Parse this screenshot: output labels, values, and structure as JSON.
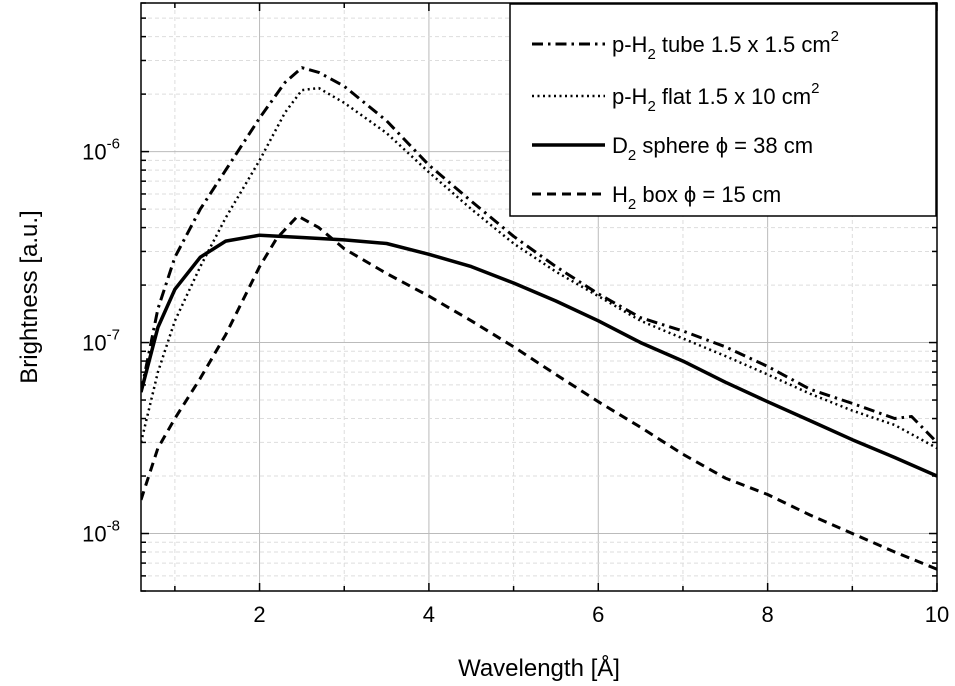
{
  "chart_data": {
    "type": "line",
    "xlabel": "Wavelength [Å]",
    "ylabel": "Brightness [a.u.]",
    "xlim": [
      0.6,
      10
    ],
    "ylim": [
      5e-09,
      6e-06
    ],
    "yscale": "log",
    "grid": true,
    "legend_position": "top-right",
    "x_ticks": [
      2,
      4,
      6,
      8,
      10
    ],
    "x_tick_labels": [
      "2",
      "4",
      "6",
      "8",
      "10"
    ],
    "y_ticks": [
      1e-08,
      1e-07,
      1e-06
    ],
    "y_tick_labels": [
      {
        "base": "10",
        "exp": "-8"
      },
      {
        "base": "10",
        "exp": "-7"
      },
      {
        "base": "10",
        "exp": "-6"
      }
    ],
    "series": [
      {
        "legend": {
          "pre": "p-H",
          "sub": "2",
          "post": " tube 1.5 x 1.5 cm",
          "sup": "2"
        },
        "style": "dashdot",
        "x": [
          0.6,
          0.8,
          1.0,
          1.3,
          1.6,
          2.0,
          2.3,
          2.5,
          2.7,
          3.0,
          3.5,
          4.0,
          4.5,
          5.0,
          5.5,
          6.0,
          6.5,
          7.0,
          7.5,
          8.0,
          8.5,
          9.0,
          9.5,
          9.7,
          10.0
        ],
        "y": [
          5.5e-08,
          1.5e-07,
          2.8e-07,
          5e-07,
          8e-07,
          1.5e-06,
          2.3e-06,
          2.75e-06,
          2.6e-06,
          2.2e-06,
          1.45e-06,
          8.5e-07,
          5.5e-07,
          3.6e-07,
          2.5e-07,
          1.8e-07,
          1.35e-07,
          1.15e-07,
          9.5e-08,
          7.5e-08,
          5.7e-08,
          4.8e-08,
          4e-08,
          4.1e-08,
          3e-08
        ]
      },
      {
        "legend": {
          "pre": "p-H",
          "sub": "2",
          "post": " flat 1.5 x 10 cm",
          "sup": "2"
        },
        "style": "dotted",
        "x": [
          0.6,
          0.8,
          1.0,
          1.3,
          1.6,
          2.0,
          2.3,
          2.5,
          2.7,
          3.0,
          3.5,
          4.0,
          4.5,
          5.0,
          5.5,
          6.0,
          6.5,
          7.0,
          7.5,
          8.0,
          8.5,
          9.0,
          9.5,
          10.0
        ],
        "y": [
          3e-08,
          7e-08,
          1.3e-07,
          2.5e-07,
          4.5e-07,
          9e-07,
          1.6e-06,
          2.1e-06,
          2.15e-06,
          1.8e-06,
          1.25e-06,
          7.8e-07,
          5e-07,
          3.3e-07,
          2.35e-07,
          1.75e-07,
          1.3e-07,
          1.05e-07,
          8.5e-08,
          6.8e-08,
          5.4e-08,
          4.4e-08,
          3.7e-08,
          2.8e-08
        ]
      },
      {
        "legend": {
          "pre": "D",
          "sub": "2",
          "post": " sphere ϕ = 38 cm",
          "sup": ""
        },
        "style": "solid",
        "x": [
          0.6,
          0.8,
          1.0,
          1.3,
          1.6,
          2.0,
          2.5,
          3.0,
          3.5,
          4.0,
          4.5,
          5.0,
          5.5,
          6.0,
          6.5,
          7.0,
          7.5,
          8.0,
          8.5,
          9.0,
          9.5,
          10.0
        ],
        "y": [
          5.5e-08,
          1.2e-07,
          1.9e-07,
          2.8e-07,
          3.4e-07,
          3.65e-07,
          3.55e-07,
          3.45e-07,
          3.3e-07,
          2.9e-07,
          2.5e-07,
          2.05e-07,
          1.65e-07,
          1.3e-07,
          1e-07,
          8e-08,
          6.2e-08,
          4.9e-08,
          3.9e-08,
          3.1e-08,
          2.5e-08,
          2e-08
        ]
      },
      {
        "legend": {
          "pre": "H",
          "sub": "2",
          "post": " box ϕ = 15 cm",
          "sup": ""
        },
        "style": "dashed",
        "x": [
          0.6,
          0.8,
          1.0,
          1.3,
          1.6,
          2.0,
          2.2,
          2.45,
          2.7,
          3.0,
          3.5,
          4.0,
          4.5,
          5.0,
          5.5,
          6.0,
          6.5,
          7.0,
          7.5,
          8.0,
          8.5,
          9.0,
          9.5,
          10.0
        ],
        "y": [
          1.5e-08,
          2.8e-08,
          4e-08,
          6.5e-08,
          1.1e-07,
          2.5e-07,
          3.5e-07,
          4.6e-07,
          4e-07,
          3.1e-07,
          2.3e-07,
          1.75e-07,
          1.3e-07,
          9.5e-08,
          6.8e-08,
          4.9e-08,
          3.6e-08,
          2.6e-08,
          1.95e-08,
          1.6e-08,
          1.25e-08,
          1e-08,
          8e-09,
          6.5e-09
        ]
      }
    ]
  }
}
